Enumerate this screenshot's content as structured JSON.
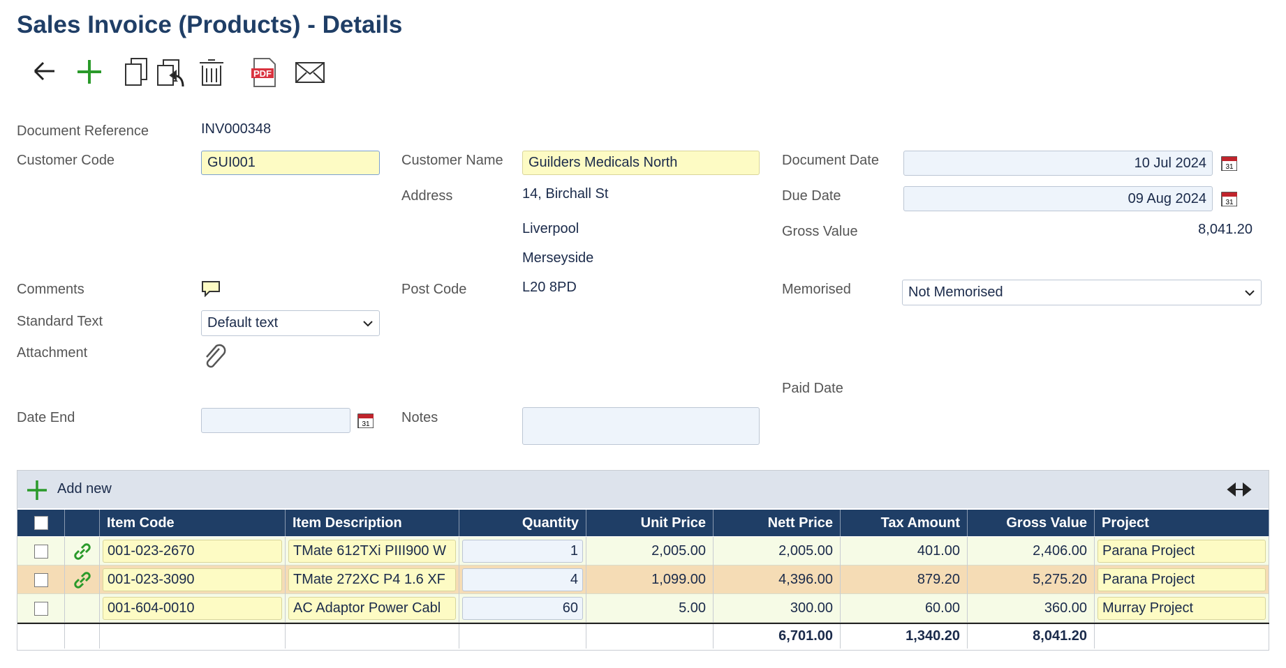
{
  "header": {
    "title": "Sales Invoice (Products) - Details"
  },
  "toolbar": {
    "pdf_icon_text": "PDF"
  },
  "calendar_icon_text": "31",
  "fields": {
    "document_reference": {
      "label": "Document Reference",
      "value": "INV000348"
    },
    "customer_code": {
      "label": "Customer Code",
      "value": "GUI001"
    },
    "customer_name": {
      "label": "Customer Name",
      "value": "Guilders Medicals North"
    },
    "address": {
      "label": "Address",
      "lines": [
        "14, Birchall St",
        "Liverpool",
        "Merseyside"
      ]
    },
    "post_code": {
      "label": "Post Code",
      "value": "L20 8PD"
    },
    "document_date": {
      "label": "Document Date",
      "value": "10 Jul 2024"
    },
    "due_date": {
      "label": "Due Date",
      "value": "09 Aug 2024"
    },
    "gross_value": {
      "label": "Gross Value",
      "value": "8,041.20"
    },
    "comments": {
      "label": "Comments"
    },
    "standard_text": {
      "label": "Standard Text",
      "value": "Default text"
    },
    "attachment": {
      "label": "Attachment"
    },
    "memorised": {
      "label": "Memorised",
      "value": "Not Memorised"
    },
    "paid_date": {
      "label": "Paid Date"
    },
    "date_end": {
      "label": "Date End"
    },
    "notes": {
      "label": "Notes"
    }
  },
  "table": {
    "add_new": "Add new",
    "columns": [
      "Item Code",
      "Item Description",
      "Quantity",
      "Unit Price",
      "Nett Price",
      "Tax Amount",
      "Gross Value",
      "Project"
    ],
    "rows": [
      {
        "cells": [
          "001-023-2670",
          "TMate 612TXi PIII900 W",
          "1",
          "2,005.00",
          "2,005.00",
          "401.00",
          "2,406.00",
          "Parana Project"
        ],
        "linked": true,
        "highlighted": false
      },
      {
        "cells": [
          "001-023-3090",
          "TMate 272XC P4 1.6 XF",
          "4",
          "1,099.00",
          "4,396.00",
          "879.20",
          "5,275.20",
          "Parana Project"
        ],
        "linked": true,
        "highlighted": true
      },
      {
        "cells": [
          "001-604-0010",
          "AC Adaptor Power Cabl",
          "60",
          "5.00",
          "300.00",
          "60.00",
          "360.00",
          "Murray Project"
        ],
        "linked": false,
        "highlighted": false
      }
    ],
    "totals": {
      "nett": "6,701.00",
      "tax": "1,340.20",
      "gross": "8,041.20"
    }
  }
}
